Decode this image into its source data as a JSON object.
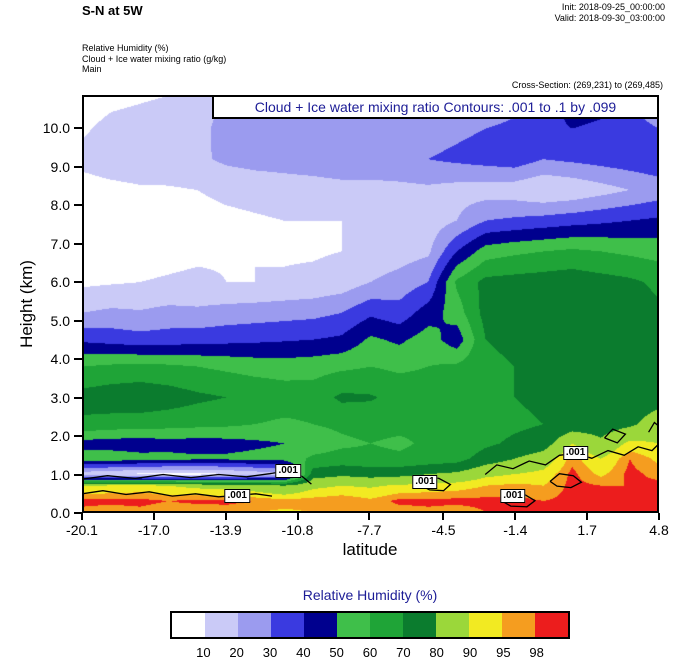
{
  "header": {
    "title": "S-N at 5W",
    "init_label": "Init: 2018-09-25_00:00:00",
    "valid_label": "Valid: 2018-09-30_03:00:00",
    "field_lines": [
      "Relative Humidity  (%)",
      "Cloud + Ice water mixing ratio   (g/kg)",
      "Main"
    ],
    "cross_section": "Cross-Section: (269,231) to (269,485)"
  },
  "plot": {
    "contour_title": "Cloud + Ice water mixing ratio Contours: .001 to .1 by .099",
    "xlabel": "latitude",
    "ylabel": "Height (km)",
    "x_ticks": [
      "-20.1",
      "-17.0",
      "-13.9",
      "-10.8",
      "-7.7",
      "-4.5",
      "-1.4",
      "1.7",
      "4.8"
    ],
    "y_ticks": [
      "0.0",
      "1.0",
      "2.0",
      "3.0",
      "4.0",
      "5.0",
      "6.0",
      "7.0",
      "8.0",
      "9.0",
      "10.0"
    ]
  },
  "colorbar": {
    "title": "Relative Humidity  (%)",
    "tick_labels": [
      "10",
      "20",
      "30",
      "40",
      "50",
      "60",
      "70",
      "80",
      "90",
      "95",
      "98"
    ]
  },
  "colors": {
    "accent_text": "#1c1c96"
  },
  "chart_data": {
    "type": "heatmap",
    "title": "Relative Humidity (%) vertical cross-section S-N at 5W",
    "xlabel": "latitude",
    "ylabel": "Height (km)",
    "x_range": [
      -20.1,
      4.8
    ],
    "y_range": [
      0,
      10.86
    ],
    "levels": [
      10,
      20,
      30,
      40,
      50,
      60,
      70,
      80,
      90,
      95,
      98
    ],
    "colors": [
      "#ffffff",
      "#cacaf7",
      "#9b9bef",
      "#3a3ae0",
      "#00008e",
      "#3fbf4a",
      "#1fa437",
      "#0b7c2e",
      "#9bd73a",
      "#f2ea22",
      "#f59d1f",
      "#ec1d1d"
    ],
    "x": [
      -20.1,
      -18.855,
      -17.61,
      -16.365,
      -15.12,
      -13.875,
      -12.63,
      -11.385,
      -10.14,
      -8.895,
      -7.65,
      -6.405,
      -5.16,
      -3.915,
      -2.67,
      -1.425,
      -0.18,
      1.065,
      2.31,
      3.555,
      4.8
    ],
    "y": [
      0,
      0.3,
      0.7,
      1.0,
      1.4,
      1.8,
      2.3,
      3.0,
      3.8,
      4.5,
      5.2,
      6.0,
      6.8,
      7.6,
      8.4,
      9.2,
      10.0,
      10.86
    ],
    "values": [
      [
        97,
        96,
        97,
        96,
        95,
        96,
        95,
        94,
        95,
        96,
        95,
        96,
        97,
        96,
        98,
        99,
        99,
        99,
        98,
        99,
        99
      ],
      [
        99,
        99,
        99,
        98,
        99,
        99,
        98,
        97,
        97,
        98,
        96,
        99,
        99,
        99,
        99,
        99,
        98,
        99,
        99,
        99,
        99
      ],
      [
        90,
        91,
        92,
        90,
        88,
        87,
        85,
        80,
        88,
        90,
        89,
        91,
        92,
        93,
        95,
        96,
        95,
        99,
        98,
        98,
        99
      ],
      [
        14,
        10,
        8,
        7,
        7,
        9,
        13,
        18,
        75,
        78,
        76,
        77,
        80,
        82,
        88,
        90,
        92,
        99,
        94,
        99,
        97
      ],
      [
        55,
        56,
        54,
        53,
        52,
        52,
        53,
        54,
        62,
        64,
        63,
        62,
        64,
        66,
        75,
        80,
        85,
        97,
        90,
        98,
        94
      ],
      [
        46,
        45,
        44,
        46,
        45,
        46,
        48,
        50,
        54,
        58,
        60,
        58,
        62,
        62,
        68,
        72,
        75,
        90,
        82,
        92,
        90
      ],
      [
        68,
        66,
        65,
        64,
        63,
        62,
        60,
        58,
        60,
        62,
        64,
        63,
        62,
        64,
        66,
        68,
        70,
        74,
        75,
        78,
        85
      ],
      [
        74,
        76,
        77,
        75,
        72,
        70,
        68,
        66,
        65,
        72,
        71,
        67,
        66,
        68,
        70,
        70,
        72,
        73,
        74,
        75,
        76
      ],
      [
        60,
        62,
        63,
        62,
        60,
        58,
        56,
        55,
        56,
        58,
        60,
        58,
        60,
        62,
        68,
        70,
        72,
        73,
        74,
        73,
        72
      ],
      [
        38,
        36,
        34,
        35,
        36,
        37,
        38,
        39,
        40,
        42,
        52,
        48,
        55,
        44,
        70,
        72,
        74,
        75,
        76,
        74,
        70
      ],
      [
        20,
        22,
        21,
        23,
        22,
        24,
        25,
        26,
        27,
        30,
        38,
        34,
        45,
        55,
        74,
        76,
        77,
        78,
        77,
        75,
        72
      ],
      [
        8,
        9,
        10,
        11,
        12,
        10,
        10,
        11,
        12,
        14,
        20,
        24,
        30,
        62,
        73,
        74,
        75,
        76,
        74,
        72,
        68
      ],
      [
        6,
        6,
        6,
        7,
        8,
        9,
        10,
        9,
        9,
        10,
        13,
        15,
        18,
        40,
        55,
        58,
        60,
        62,
        60,
        58,
        56
      ],
      [
        6,
        6,
        6,
        6,
        7,
        8,
        9,
        10,
        10,
        10,
        11,
        12,
        14,
        20,
        30,
        32,
        34,
        36,
        38,
        40,
        42
      ],
      [
        7,
        8,
        9,
        9,
        10,
        12,
        13,
        14,
        15,
        16,
        16,
        17,
        18,
        16,
        15,
        14,
        10,
        12,
        16,
        20,
        24
      ],
      [
        12,
        14,
        15,
        16,
        18,
        22,
        24,
        25,
        26,
        28,
        28,
        28,
        30,
        32,
        34,
        36,
        30,
        32,
        34,
        36,
        38
      ],
      [
        9,
        12,
        13,
        14,
        15,
        26,
        30,
        26,
        24,
        25,
        24,
        25,
        26,
        28,
        30,
        32,
        36,
        40,
        38,
        34,
        30
      ],
      [
        6,
        8,
        9,
        10,
        11,
        22,
        24,
        15,
        14,
        15,
        16,
        17,
        18,
        20,
        22,
        26,
        30,
        48,
        45,
        28,
        22
      ]
    ],
    "overlay_contours": {
      "field": "Cloud + Ice water mixing ratio (g/kg)",
      "levels": [
        0.001,
        0.1
      ],
      "value_label": ".001",
      "paths": [
        [
          [
            -20.1,
            0.88
          ],
          [
            -19,
            0.97
          ],
          [
            -17.8,
            0.9
          ],
          [
            -16.6,
            1.0
          ],
          [
            -15.4,
            0.92
          ],
          [
            -14.2,
            1.0
          ],
          [
            -13,
            0.94
          ],
          [
            -12,
            1.02
          ],
          [
            -11.2,
            1.1
          ],
          [
            -10.6,
            0.95
          ],
          [
            -10.2,
            0.75
          ]
        ],
        [
          [
            -20.1,
            0.5
          ],
          [
            -19.2,
            0.58
          ],
          [
            -18.2,
            0.48
          ],
          [
            -17.2,
            0.55
          ],
          [
            -16.2,
            0.44
          ],
          [
            -15.2,
            0.5
          ],
          [
            -14.2,
            0.42
          ],
          [
            -13.4,
            0.46
          ],
          [
            -12.6,
            0.5
          ],
          [
            -11.9,
            0.44
          ]
        ],
        [
          [
            -5.7,
            0.78
          ],
          [
            -5.3,
            0.95
          ],
          [
            -4.7,
            0.9
          ],
          [
            -4.2,
            0.74
          ],
          [
            -4.5,
            0.58
          ],
          [
            -5.1,
            0.6
          ],
          [
            -5.7,
            0.78
          ]
        ],
        [
          [
            -2.0,
            0.32
          ],
          [
            -1.6,
            0.52
          ],
          [
            -1.0,
            0.48
          ],
          [
            -0.55,
            0.32
          ],
          [
            -0.9,
            0.16
          ],
          [
            -1.6,
            0.18
          ],
          [
            -2.0,
            0.32
          ]
        ],
        [
          [
            -2.7,
            1.0
          ],
          [
            -2.2,
            1.25
          ],
          [
            -1.5,
            1.15
          ],
          [
            -0.8,
            1.35
          ],
          [
            -0.1,
            1.25
          ],
          [
            0.5,
            1.5
          ],
          [
            1.2,
            1.55
          ],
          [
            1.9,
            1.42
          ],
          [
            2.6,
            1.62
          ],
          [
            3.3,
            1.5
          ],
          [
            3.9,
            1.72
          ],
          [
            4.5,
            1.62
          ],
          [
            4.8,
            1.8
          ]
        ],
        [
          [
            2.45,
            1.95
          ],
          [
            2.8,
            2.18
          ],
          [
            3.35,
            2.05
          ],
          [
            3.0,
            1.82
          ],
          [
            2.45,
            1.95
          ]
        ],
        [
          [
            0.1,
            0.82
          ],
          [
            0.5,
            1.02
          ],
          [
            1.1,
            0.97
          ],
          [
            1.45,
            0.8
          ],
          [
            1.0,
            0.66
          ],
          [
            0.4,
            0.7
          ],
          [
            0.1,
            0.82
          ]
        ],
        [
          [
            4.35,
            2.1
          ],
          [
            4.6,
            2.35
          ],
          [
            4.8,
            2.25
          ]
        ]
      ],
      "labels": [
        {
          "text": ".001",
          "x": -13.4,
          "y": 0.45
        },
        {
          "text": ".001",
          "x": -11.2,
          "y": 1.1
        },
        {
          "text": ".001",
          "x": -5.3,
          "y": 0.8
        },
        {
          "text": ".001",
          "x": -1.5,
          "y": 0.45
        },
        {
          "text": ".001",
          "x": 1.2,
          "y": 1.55
        }
      ]
    }
  }
}
